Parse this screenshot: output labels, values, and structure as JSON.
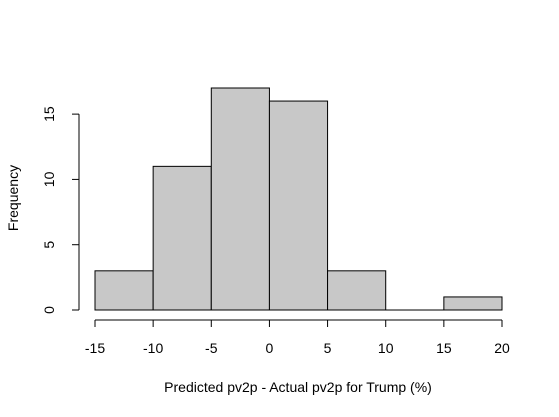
{
  "chart_data": {
    "type": "bar",
    "title": "",
    "xlabel": "Predicted pv2p - Actual pv2p for Trump (%)",
    "ylabel": "Frequency",
    "bins": [
      {
        "from": -15,
        "to": -10,
        "count": 3
      },
      {
        "from": -10,
        "to": -5,
        "count": 11
      },
      {
        "from": -5,
        "to": 0,
        "count": 17
      },
      {
        "from": 0,
        "to": 5,
        "count": 16
      },
      {
        "from": 5,
        "to": 10,
        "count": 3
      },
      {
        "from": 10,
        "to": 15,
        "count": 0
      },
      {
        "from": 15,
        "to": 20,
        "count": 1
      }
    ],
    "x_ticks": [
      -15,
      -10,
      -5,
      0,
      5,
      10,
      15,
      20
    ],
    "y_ticks": [
      0,
      5,
      10,
      15
    ],
    "xlim": [
      -15,
      20
    ],
    "ylim": [
      0,
      17
    ],
    "grid": false,
    "bar_color": "#c8c8c8",
    "edge_color": "#000000"
  }
}
